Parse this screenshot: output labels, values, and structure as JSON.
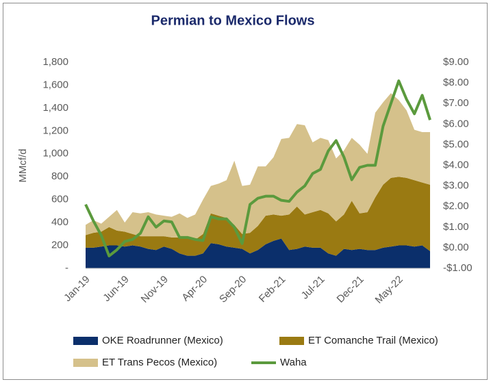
{
  "chart_data": {
    "type": "area",
    "stacked": true,
    "title": "Permian to Mexico Flows",
    "y_label": "MMcf/d",
    "categories": [
      "Jan-19",
      null,
      null,
      null,
      null,
      "Jun-19",
      null,
      null,
      null,
      null,
      "Nov-19",
      null,
      null,
      null,
      null,
      "Apr-20",
      null,
      null,
      null,
      null,
      "Sep-20",
      null,
      null,
      null,
      null,
      "Feb-21",
      null,
      null,
      null,
      null,
      "Jul-21",
      null,
      null,
      null,
      null,
      "Dec-21",
      null,
      null,
      null,
      null,
      "May-22",
      null,
      null,
      null,
      null
    ],
    "series": [
      {
        "name": "OKE Roadrunner (Mexico)",
        "color": "#0b2f6b",
        "values": [
          180,
          180,
          190,
          200,
          200,
          190,
          200,
          190,
          170,
          160,
          190,
          170,
          130,
          110,
          110,
          130,
          220,
          210,
          190,
          180,
          170,
          130,
          160,
          210,
          240,
          260,
          160,
          170,
          190,
          180,
          180,
          130,
          110,
          170,
          160,
          170,
          160,
          160,
          180,
          190,
          200,
          200,
          190,
          200,
          150
        ]
      },
      {
        "name": "ET Comanche Trail (Mexico)",
        "color": "#9a7a12",
        "values": [
          110,
          130,
          130,
          160,
          130,
          130,
          100,
          90,
          110,
          120,
          90,
          100,
          140,
          150,
          140,
          170,
          260,
          250,
          250,
          200,
          130,
          180,
          210,
          250,
          230,
          200,
          310,
          370,
          280,
          310,
          330,
          350,
          300,
          300,
          430,
          310,
          330,
          460,
          550,
          600,
          600,
          590,
          580,
          550,
          580
        ]
      },
      {
        "name": "ET Trans Pecos (Mexico)",
        "color": "#d5c18b",
        "values": [
          90,
          110,
          70,
          90,
          180,
          80,
          190,
          200,
          210,
          190,
          180,
          180,
          210,
          180,
          220,
          300,
          240,
          280,
          330,
          560,
          420,
          420,
          520,
          430,
          500,
          670,
          670,
          720,
          780,
          610,
          630,
          640,
          550,
          560,
          550,
          600,
          510,
          740,
          720,
          740,
          670,
          590,
          440,
          440,
          460
        ]
      },
      {
        "name": "Waha",
        "color": "#5b9a3d",
        "type": "line",
        "axis": "y2",
        "values": [
          2.1,
          1.3,
          0.6,
          -0.4,
          -0.1,
          0.3,
          0.4,
          0.7,
          1.5,
          1.0,
          1.3,
          1.25,
          0.5,
          0.5,
          0.4,
          0.35,
          1.5,
          1.4,
          1.4,
          1.0,
          0.2,
          2.1,
          2.4,
          2.5,
          2.5,
          2.3,
          2.25,
          2.7,
          3.0,
          3.6,
          3.8,
          4.7,
          5.2,
          4.4,
          3.3,
          3.9,
          4.0,
          4.0,
          5.9,
          7.0,
          8.1,
          7.2,
          6.5,
          7.4,
          6.2
        ]
      }
    ],
    "ylim": [
      0,
      1800
    ],
    "yticks": [
      {
        "value": 0,
        "label": "-"
      },
      200,
      400,
      600,
      800,
      {
        "value": 1000,
        "label": "1,000"
      },
      {
        "value": 1200,
        "label": "1,200"
      },
      {
        "value": 1400,
        "label": "1,400"
      },
      {
        "value": 1600,
        "label": "1,600"
      },
      {
        "value": 1800,
        "label": "1,800"
      }
    ],
    "y2lim": [
      -1,
      9
    ],
    "y2ticks": [
      {
        "value": -1,
        "label": "-$1.00"
      },
      {
        "value": 0,
        "label": "$0.00"
      },
      {
        "value": 1,
        "label": "$1.00"
      },
      {
        "value": 2,
        "label": "$2.00"
      },
      {
        "value": 3,
        "label": "$3.00"
      },
      {
        "value": 4,
        "label": "$4.00"
      },
      {
        "value": 5,
        "label": "$5.00"
      },
      {
        "value": 6,
        "label": "$6.00"
      },
      {
        "value": 7,
        "label": "$7.00"
      },
      {
        "value": 8,
        "label": "$8.00"
      },
      {
        "value": 9,
        "label": "$9.00"
      }
    ],
    "legend": "bottom"
  }
}
